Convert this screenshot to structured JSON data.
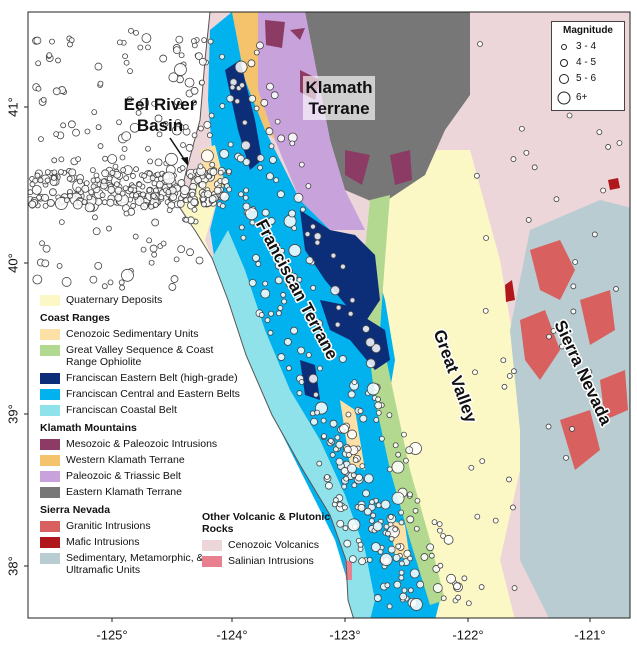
{
  "map": {
    "axes": {
      "longitude": [
        "-125°",
        "-124°",
        "-123°",
        "-122°",
        "-121°"
      ],
      "latitude": [
        "41°",
        "40°",
        "39°",
        "38°"
      ]
    },
    "region_labels": {
      "eel_river_basin": [
        "Eel River",
        "Basin"
      ],
      "klamath_terrane": [
        "Klamath",
        "Terrane"
      ],
      "franciscan_terrane": "Franciscan Terrane",
      "great_valley": "Great Valley",
      "sierra_nevada": "Sierra Nevada"
    },
    "magnitude_legend": {
      "title": "Magnitude",
      "items": [
        "3 - 4",
        "4 - 5",
        "5 - 6",
        "6+"
      ]
    },
    "geology_legend": {
      "groups": [
        {
          "items": [
            {
              "label": "Quaternary Deposits",
              "color": "#fcf8c6"
            }
          ]
        },
        {
          "heading": "Coast Ranges",
          "items": [
            {
              "label": "Cenozoic Sedimentary Units",
              "color": "#fce0a6"
            },
            {
              "label": "Great Valley Sequence & Coast Range Ophiolite",
              "color": "#b2d98f"
            },
            {
              "label": "Franciscan Eastern Belt (high-grade)",
              "color": "#0c2d78"
            },
            {
              "label": "Franciscan Central and Eastern Belts",
              "color": "#02b2ee"
            },
            {
              "label": "Franciscan Coastal Belt",
              "color": "#90e2ea"
            }
          ]
        },
        {
          "heading": "Klamath Mountains",
          "items": [
            {
              "label": "Mesozoic & Paleozoic Intrusions",
              "color": "#8c3c64"
            },
            {
              "label": "Western Klamath Terrane",
              "color": "#f4c36c"
            },
            {
              "label": "Paleozoic & Triassic Belt",
              "color": "#c8a2db"
            },
            {
              "label": "Eastern Klamath Terrane",
              "color": "#777777"
            }
          ]
        },
        {
          "heading": "Sierra Nevada",
          "items": [
            {
              "label": "Granitic Intrusions",
              "color": "#d8605e"
            },
            {
              "label": "Mafic Intrusions",
              "color": "#b0171c"
            },
            {
              "label": "Sedimentary, Metamorphic, & Ultramafic Units",
              "color": "#b8ccd1"
            }
          ]
        },
        {
          "heading": "Other Volcanic & Plutonic Rocks",
          "items": [
            {
              "label": "Cenozoic Volcanics",
              "color": "#ecd6d9"
            },
            {
              "label": "Salinian Intrusions",
              "color": "#e8808f"
            }
          ]
        }
      ]
    }
  }
}
